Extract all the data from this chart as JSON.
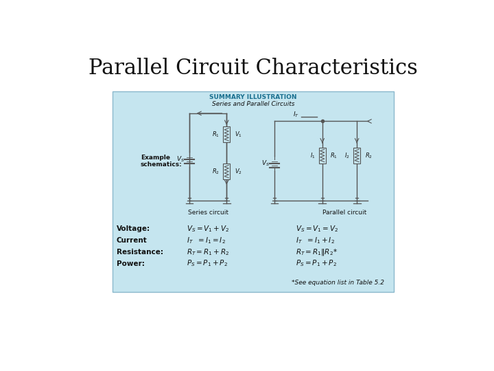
{
  "title": "Parallel Circuit Characteristics",
  "title_fontsize": 22,
  "title_fontname": "DejaVu Serif",
  "background_color": "#ffffff",
  "box_bg_color": "#c5e5ef",
  "box_border_color": "#8ab8cc",
  "summary_label": "SUMMARY ILLUSTRATION",
  "subtitle": "Series and Parallel Circuits",
  "series_label": "Series circuit",
  "parallel_label": "Parallel circuit",
  "example_label": "Example\nschematics:",
  "voltage_label": "Voltage:",
  "current_label": "Current",
  "resistance_label": "Resistance:",
  "power_label": "Power:",
  "series_voltage": "$V_S = V_1 + V_2$",
  "series_current": "$I_T\\ \\ = I_1 = I_2$",
  "series_resistance": "$R_T = R_1 + R_2$",
  "series_power": "$P_S = P_1 + P_2$",
  "parallel_voltage": "$V_S = V_1 = V_2$",
  "parallel_current": "$I_T\\ \\ = I_1 + I_2$",
  "parallel_resistance": "$R_T = R_1 \\| R_2$*",
  "parallel_power": "$P_S = P_1 + P_2$",
  "footnote": "*See equation list in Table 5.2",
  "text_color": "#111111",
  "label_color": "#1a7090",
  "wire_color": "#555555",
  "body_fontsize": 7.5,
  "small_fontsize": 6.5
}
